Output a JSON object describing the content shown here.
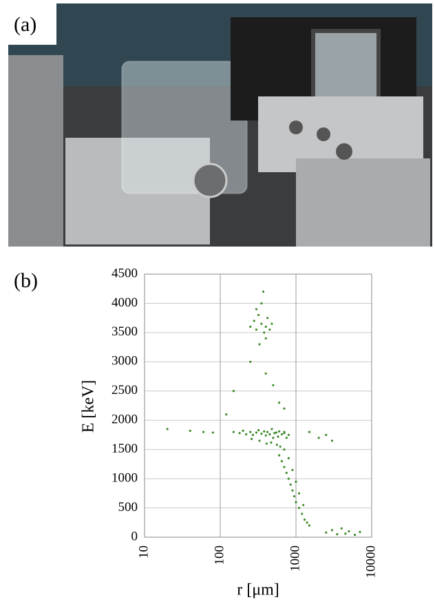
{
  "panel_a": {
    "label": "(a)"
  },
  "chart_data": {
    "type": "scatter",
    "panel_label": "(b)",
    "x_label": "r [μm]",
    "y_label": "E [keV]",
    "log_x": true,
    "grid": true,
    "color": "#3d8b2a",
    "xlim": [
      10,
      10000
    ],
    "xticks": [
      10,
      100,
      1000,
      10000
    ],
    "ylim": [
      0,
      4500
    ],
    "yticks": [
      0,
      500,
      1000,
      1500,
      2000,
      2500,
      3000,
      3500,
      4000,
      4500
    ],
    "x": [
      150,
      180,
      200,
      220,
      250,
      270,
      300,
      320,
      350,
      380,
      400,
      420,
      450,
      480,
      500,
      520,
      550,
      580,
      600,
      650,
      700,
      750,
      800,
      260,
      330,
      410,
      470,
      560,
      620,
      700,
      250,
      280,
      300,
      320,
      350,
      380,
      400,
      420,
      450,
      480,
      300,
      350,
      400,
      330,
      370,
      600,
      650,
      700,
      750,
      800,
      850,
      900,
      950,
      1000,
      1100,
      1200,
      1300,
      1400,
      1500,
      700,
      800,
      900,
      1000,
      1100,
      1250,
      2500,
      3000,
      3500,
      4000,
      4500,
      5000,
      6000,
      7000,
      20,
      40,
      60,
      80,
      120,
      150,
      1500,
      2000,
      2500,
      3000,
      400,
      500,
      600,
      250,
      700
    ],
    "y": [
      1800,
      1780,
      1820,
      1760,
      1800,
      1750,
      1790,
      1830,
      1770,
      1810,
      1740,
      1800,
      1760,
      1850,
      1700,
      1780,
      1790,
      1720,
      1810,
      1760,
      1800,
      1700,
      1750,
      1680,
      1650,
      1600,
      1620,
      1580,
      1550,
      1780,
      3600,
      3700,
      3550,
      3800,
      3650,
      3500,
      3600,
      3750,
      3550,
      3650,
      3900,
      4000,
      3400,
      3300,
      4200,
      1400,
      1300,
      1200,
      1100,
      1000,
      900,
      800,
      700,
      600,
      500,
      400,
      300,
      250,
      200,
      1500,
      1350,
      1150,
      950,
      750,
      550,
      80,
      120,
      50,
      150,
      60,
      100,
      40,
      90,
      1850,
      1820,
      1800,
      1790,
      2100,
      2500,
      1800,
      1700,
      1750,
      1650,
      2800,
      2600,
      2300,
      3000,
      2200
    ]
  }
}
